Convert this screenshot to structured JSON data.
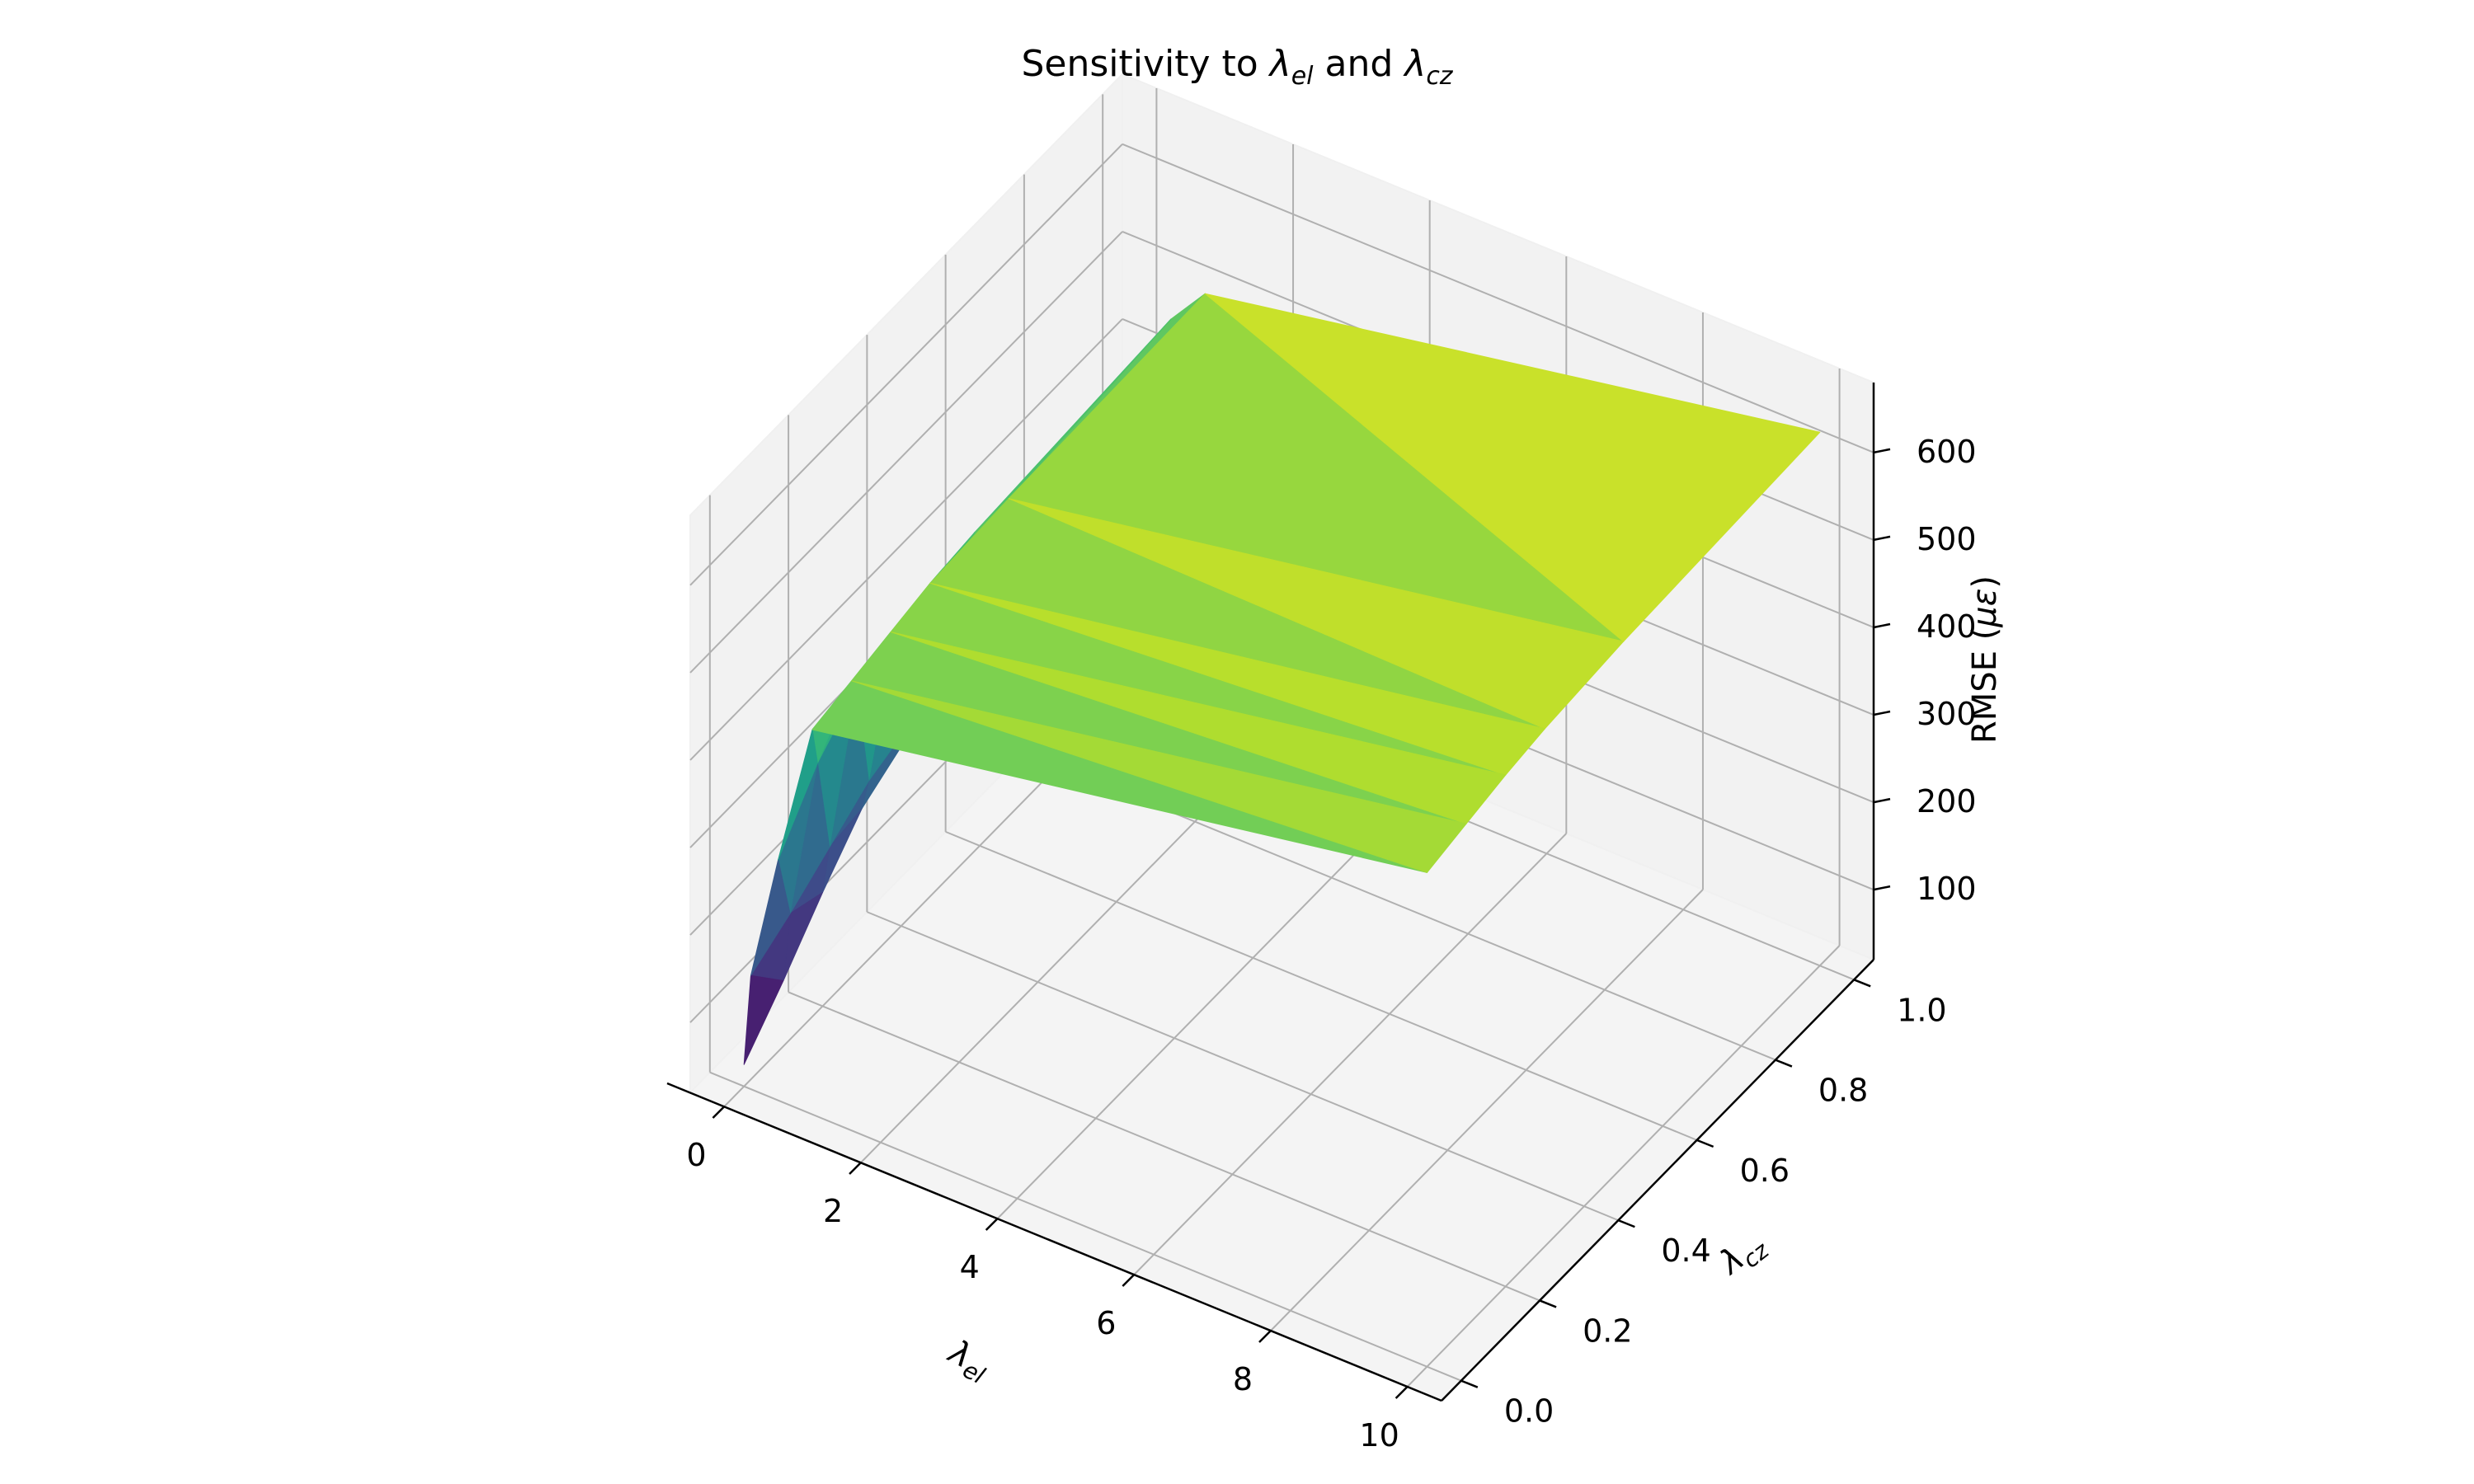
{
  "chart_data": {
    "type": "surface3d",
    "title": "Sensitivity to λel and λcz",
    "title_parts": {
      "prefix": "Sensitivity to ",
      "sym1": "λ",
      "sub1": "el",
      "middle": " and ",
      "sym2": "λ",
      "sub2": "cz"
    },
    "xlabel": "λel",
    "xlabel_sym": "λ",
    "xlabel_sub": "el",
    "ylabel": "λcz",
    "ylabel_sym": "λ",
    "ylabel_sub": "cz",
    "zlabel": "RMSE (με)",
    "zlabel_text": "RMSE (",
    "zlabel_sym": "με",
    "zlabel_end": ")",
    "xlim": [
      -0.5,
      10.5
    ],
    "ylim": [
      -0.05,
      1.05
    ],
    "zlim": [
      20,
      680
    ],
    "x_ticks": [
      0,
      2,
      4,
      6,
      8,
      10
    ],
    "x_tick_labels": [
      "0",
      "2",
      "4",
      "6",
      "8",
      "10"
    ],
    "y_ticks": [
      0.0,
      0.2,
      0.4,
      0.6,
      0.8,
      1.0
    ],
    "y_tick_labels": [
      "0.0",
      "0.2",
      "0.4",
      "0.6",
      "0.8",
      "1.0"
    ],
    "z_ticks": [
      100,
      200,
      300,
      400,
      500,
      600
    ],
    "z_tick_labels": [
      "100",
      "200",
      "300",
      "400",
      "500",
      "600"
    ],
    "grid": true,
    "colormap": "viridis",
    "points": [
      {
        "x": 0,
        "y": 0.0,
        "z": 45
      },
      {
        "x": 0,
        "y": 0.1,
        "z": 95
      },
      {
        "x": 0,
        "y": 0.2,
        "z": 150
      },
      {
        "x": 0,
        "y": 0.3,
        "z": 200
      },
      {
        "x": 0,
        "y": 0.5,
        "z": 250
      },
      {
        "x": 0,
        "y": 1.0,
        "z": 295
      },
      {
        "x": 0.1,
        "y": 0.0,
        "z": 150
      },
      {
        "x": 0.1,
        "y": 0.1,
        "z": 175
      },
      {
        "x": 0.1,
        "y": 0.2,
        "z": 205
      },
      {
        "x": 0.1,
        "y": 0.3,
        "z": 235
      },
      {
        "x": 0.1,
        "y": 0.5,
        "z": 268
      },
      {
        "x": 0.1,
        "y": 1.0,
        "z": 300
      },
      {
        "x": 0.5,
        "y": 0.0,
        "z": 295
      },
      {
        "x": 0.5,
        "y": 0.1,
        "z": 360
      },
      {
        "x": 0.5,
        "y": 0.2,
        "z": 400
      },
      {
        "x": 0.5,
        "y": 0.3,
        "z": 420
      },
      {
        "x": 0.5,
        "y": 0.5,
        "z": 440
      },
      {
        "x": 0.5,
        "y": 1.0,
        "z": 455
      },
      {
        "x": 1,
        "y": 0.0,
        "z": 460
      },
      {
        "x": 1,
        "y": 0.1,
        "z": 470
      },
      {
        "x": 1,
        "y": 0.2,
        "z": 480
      },
      {
        "x": 1,
        "y": 0.3,
        "z": 490
      },
      {
        "x": 1,
        "y": 0.5,
        "z": 495
      },
      {
        "x": 1,
        "y": 1.0,
        "z": 500
      },
      {
        "x": 10,
        "y": 0.0,
        "z": 585
      },
      {
        "x": 10,
        "y": 0.1,
        "z": 595
      },
      {
        "x": 10,
        "y": 0.2,
        "z": 605
      },
      {
        "x": 10,
        "y": 0.3,
        "z": 612
      },
      {
        "x": 10,
        "y": 0.5,
        "z": 620
      },
      {
        "x": 10,
        "y": 1.0,
        "z": 630
      }
    ]
  },
  "colors": {
    "pane": "#f2f2f2",
    "pane_floor": "#f4f4f4",
    "grid": "#b0b0b0",
    "axis": "#000000",
    "text": "#000000"
  }
}
